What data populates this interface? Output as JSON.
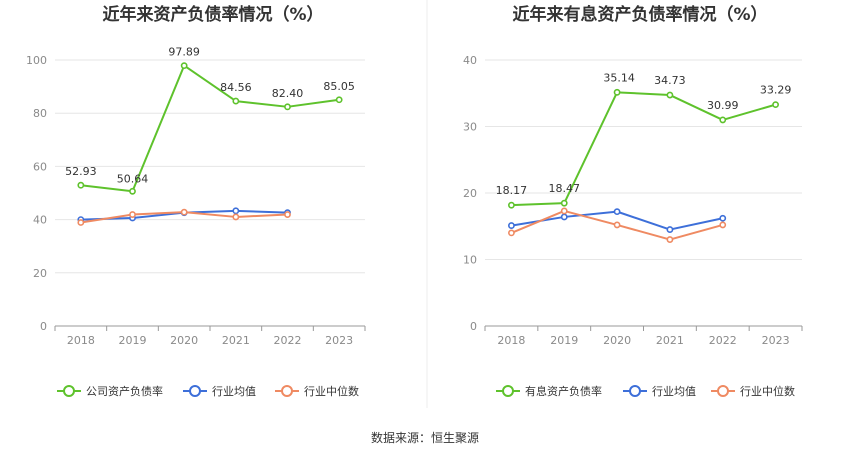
{
  "source_text": "数据来源：恒生聚源",
  "colors": {
    "main": "#5ec22c",
    "avg": "#3d6fd9",
    "median": "#ef8a62",
    "grid": "#e6e6e6",
    "axis": "#999999"
  },
  "chart_data": [
    {
      "type": "line",
      "title": "近年来资产负债率情况（%）",
      "xlabel": "",
      "ylabel": "",
      "categories": [
        "2018",
        "2019",
        "2020",
        "2021",
        "2022",
        "2023"
      ],
      "ylim": [
        0,
        100
      ],
      "yticks": [
        0,
        20,
        40,
        60,
        80,
        100
      ],
      "grid": true,
      "legend": "bottom",
      "series": [
        {
          "name": "公司资产负债率",
          "color": "#5ec22c",
          "labeled": true,
          "values": [
            52.93,
            50.64,
            97.89,
            84.56,
            82.4,
            85.05
          ],
          "labels": [
            "52.93",
            "50.64",
            "97.89",
            "84.56",
            "82.40",
            "85.05"
          ]
        },
        {
          "name": "行业均值",
          "color": "#3d6fd9",
          "labeled": false,
          "values": [
            40.0,
            40.6,
            42.6,
            43.3,
            42.6,
            null
          ]
        },
        {
          "name": "行业中位数",
          "color": "#ef8a62",
          "labeled": false,
          "values": [
            38.9,
            41.9,
            42.8,
            41.0,
            41.9,
            null
          ]
        }
      ]
    },
    {
      "type": "line",
      "title": "近年来有息资产负债率情况（%）",
      "xlabel": "",
      "ylabel": "",
      "categories": [
        "2018",
        "2019",
        "2020",
        "2021",
        "2022",
        "2023"
      ],
      "ylim": [
        0,
        40
      ],
      "yticks": [
        0,
        10,
        20,
        30,
        40
      ],
      "grid": true,
      "legend": "bottom",
      "series": [
        {
          "name": "有息资产负债率",
          "color": "#5ec22c",
          "labeled": true,
          "values": [
            18.17,
            18.47,
            35.14,
            34.73,
            30.99,
            33.29
          ],
          "labels": [
            "18.17",
            "18.47",
            "35.14",
            "34.73",
            "30.99",
            "33.29"
          ]
        },
        {
          "name": "行业均值",
          "color": "#3d6fd9",
          "labeled": false,
          "values": [
            15.1,
            16.4,
            17.2,
            14.5,
            16.2,
            null
          ]
        },
        {
          "name": "行业中位数",
          "color": "#ef8a62",
          "labeled": false,
          "values": [
            14.0,
            17.3,
            15.2,
            13.0,
            15.2,
            null
          ]
        }
      ]
    }
  ]
}
